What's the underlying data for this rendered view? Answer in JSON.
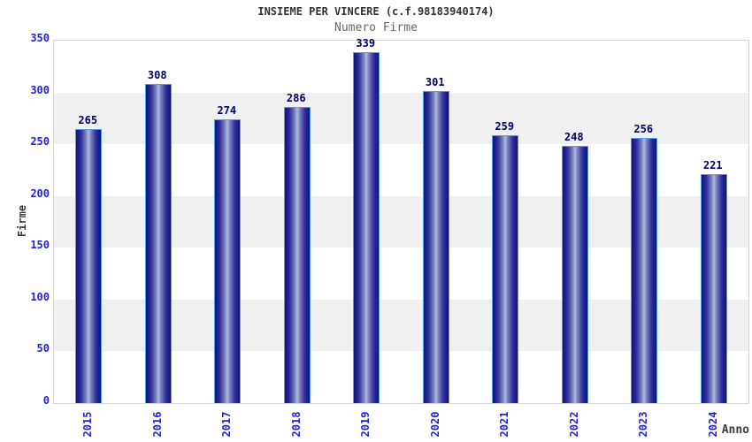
{
  "chart_data": {
    "type": "bar",
    "title": "INSIEME PER VINCERE (c.f.98183940174)",
    "subtitle": "Numero Firme",
    "xlabel": "Anno",
    "ylabel": "Firme",
    "categories": [
      "2015",
      "2016",
      "2017",
      "2018",
      "2019",
      "2020",
      "2021",
      "2022",
      "2023",
      "2024"
    ],
    "values": [
      265,
      308,
      274,
      286,
      339,
      301,
      259,
      248,
      256,
      221
    ],
    "ylim": [
      0,
      350
    ],
    "ytick_step": 50,
    "yticks": [
      0,
      50,
      100,
      150,
      200,
      250,
      300,
      350
    ],
    "legend": "none",
    "grid": "alternating horizontal bands every 50 units",
    "colors": {
      "bar_dark": "#1c1c87",
      "bar_light": "#b2badf",
      "bar_border": "#4d9ef0",
      "value_label": "#000066",
      "tick_label": "#2222dd",
      "title": "#333333",
      "subtitle": "#666666",
      "axis_label": "#3a3a3a",
      "band_gray": "#f0f0f0",
      "band_white": "#ffffff",
      "plot_border": "#d4d4d4",
      "background": "#ffffff"
    }
  }
}
